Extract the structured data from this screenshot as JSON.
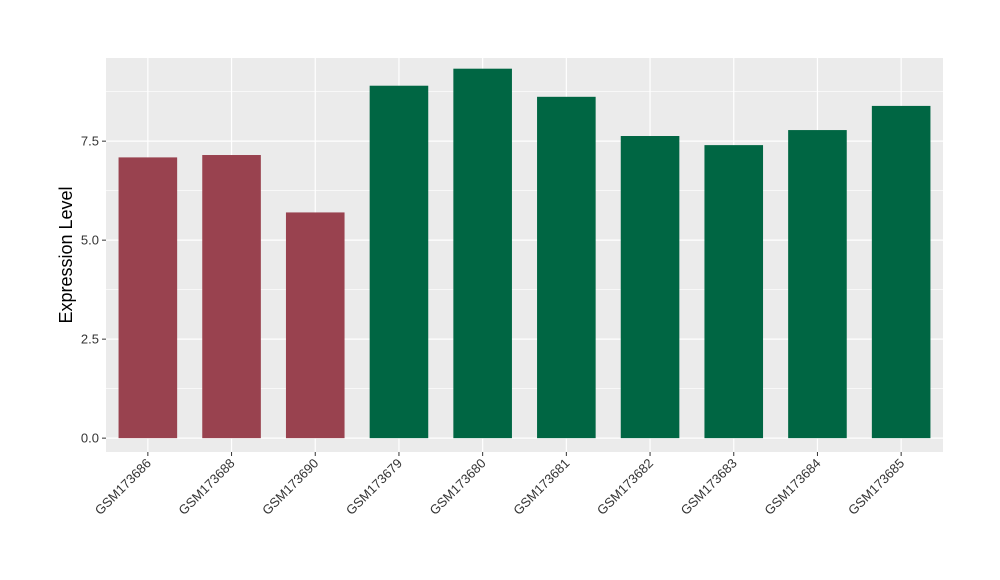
{
  "chart_data": {
    "type": "bar",
    "title": "",
    "xlabel": "",
    "ylabel": "Expression Level",
    "ylim": [
      -0.35,
      9.6
    ],
    "yticks": [
      0.0,
      2.5,
      5.0,
      7.5
    ],
    "ytick_labels": [
      "0.0",
      "2.5",
      "5.0",
      "7.5"
    ],
    "grid": true,
    "background": "#ebebeb",
    "categories": [
      "GSM173686",
      "GSM173688",
      "GSM173690",
      "GSM173679",
      "GSM173680",
      "GSM173681",
      "GSM173682",
      "GSM173683",
      "GSM173684",
      "GSM173685"
    ],
    "values": [
      7.09,
      7.15,
      5.7,
      8.9,
      9.33,
      8.62,
      7.63,
      7.4,
      7.78,
      8.39
    ],
    "colors": [
      "#99424f",
      "#99424f",
      "#99424f",
      "#006643",
      "#006643",
      "#006643",
      "#006643",
      "#006643",
      "#006643",
      "#006643"
    ]
  }
}
